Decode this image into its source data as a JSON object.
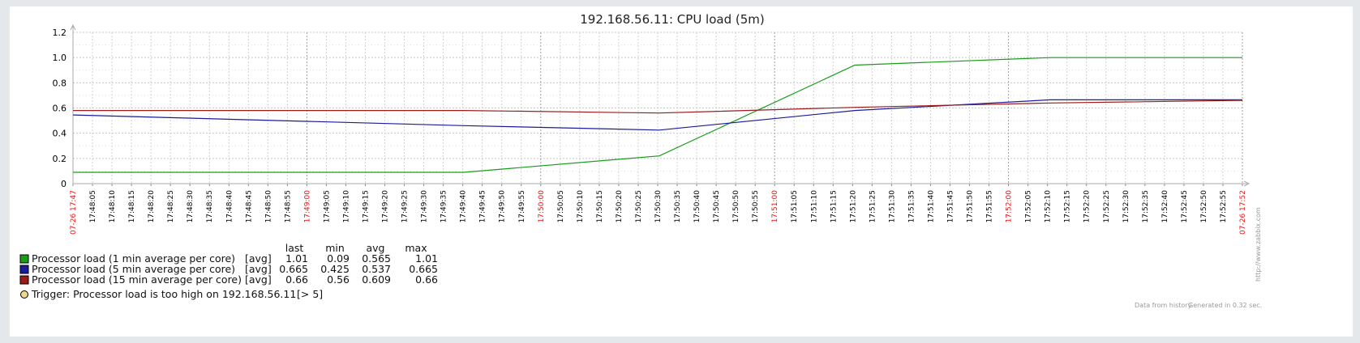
{
  "chart_data": {
    "type": "line",
    "title": "192.168.56.11: CPU load (5m)",
    "ylim": [
      0,
      1.2
    ],
    "yticks": [
      "0",
      "0.2",
      "0.4",
      "0.6",
      "0.8",
      "1.0",
      "1.2"
    ],
    "xlim": [
      "17:47:00",
      "17:52:59"
    ],
    "xtick_labels": [
      "07-26 17:47",
      "17:48:05",
      "17:48:10",
      "17:48:15",
      "17:48:20",
      "17:48:25",
      "17:48:30",
      "17:48:35",
      "17:48:40",
      "17:48:45",
      "17:48:50",
      "17:48:55",
      "17:49:00",
      "17:49:05",
      "17:49:10",
      "17:49:15",
      "17:49:20",
      "17:49:25",
      "17:49:30",
      "17:49:35",
      "17:49:40",
      "17:49:45",
      "17:49:50",
      "17:49:55",
      "17:50:00",
      "17:50:05",
      "17:50:10",
      "17:50:15",
      "17:50:20",
      "17:50:25",
      "17:50:30",
      "17:50:35",
      "17:50:40",
      "17:50:45",
      "17:50:50",
      "17:50:55",
      "17:51:00",
      "17:51:05",
      "17:51:10",
      "17:51:15",
      "17:51:20",
      "17:51:25",
      "17:51:30",
      "17:51:35",
      "17:51:40",
      "17:51:45",
      "17:51:50",
      "17:51:55",
      "17:52:00",
      "17:52:05",
      "17:52:10",
      "17:52:15",
      "17:52:20",
      "17:52:25",
      "17:52:30",
      "17:52:35",
      "17:52:40",
      "17:52:45",
      "17:52:50",
      "17:52:55",
      "07-26 17:52"
    ],
    "major_ticks": [
      "07-26 17:47",
      "17:49:00",
      "17:50:00",
      "17:51:00",
      "17:52:00",
      "07-26 17:52"
    ],
    "grid": true,
    "series": [
      {
        "name": "Processor load (1 min average per core)",
        "color": "#1a9c1a",
        "x": [
          "17:47:00",
          "17:49:00",
          "17:50:00",
          "17:51:00",
          "17:52:00",
          "17:52:59"
        ],
        "values": [
          0.09,
          0.09,
          0.22,
          0.94,
          1.0,
          1.0
        ]
      },
      {
        "name": "Processor load (5 min average per core)",
        "color": "#1a1a9c",
        "x": [
          "17:47:00",
          "17:49:00",
          "17:50:00",
          "17:51:00",
          "17:52:00",
          "17:52:59"
        ],
        "values": [
          0.545,
          0.46,
          0.425,
          0.58,
          0.665,
          0.665
        ]
      },
      {
        "name": "Processor load (15 min average per core)",
        "color": "#9c1a1a",
        "x": [
          "17:47:00",
          "17:49:00",
          "17:50:00",
          "17:51:00",
          "17:52:00",
          "17:52:59"
        ],
        "values": [
          0.58,
          0.58,
          0.56,
          0.605,
          0.64,
          0.66
        ]
      }
    ]
  },
  "legend": {
    "headers": [
      "last",
      "min",
      "avg",
      "max"
    ],
    "rows": [
      {
        "name": "Processor load (1 min average per core)",
        "color": "#1a9c1a",
        "func": "[avg]",
        "last": "1.01",
        "min": "0.09",
        "avg": "0.565",
        "max": "1.01"
      },
      {
        "name": "Processor load (5 min average per core)",
        "color": "#1a1a9c",
        "func": "[avg]",
        "last": "0.665",
        "min": "0.425",
        "avg": "0.537",
        "max": "0.665"
      },
      {
        "name": "Processor load (15 min average per core)",
        "color": "#9c1a1a",
        "func": "[avg]",
        "last": "0.66",
        "min": "0.56",
        "avg": "0.609",
        "max": "0.66"
      }
    ],
    "trigger": {
      "text": "Trigger: Processor load is too high on 192.168.56.11",
      "threshold": "[> 5]",
      "color": "#f0d68a"
    }
  },
  "footer": {
    "data_source": "Data from history.",
    "generated": "Generated in 0.32 sec.",
    "watermark": "http://www.zabbix.com"
  }
}
